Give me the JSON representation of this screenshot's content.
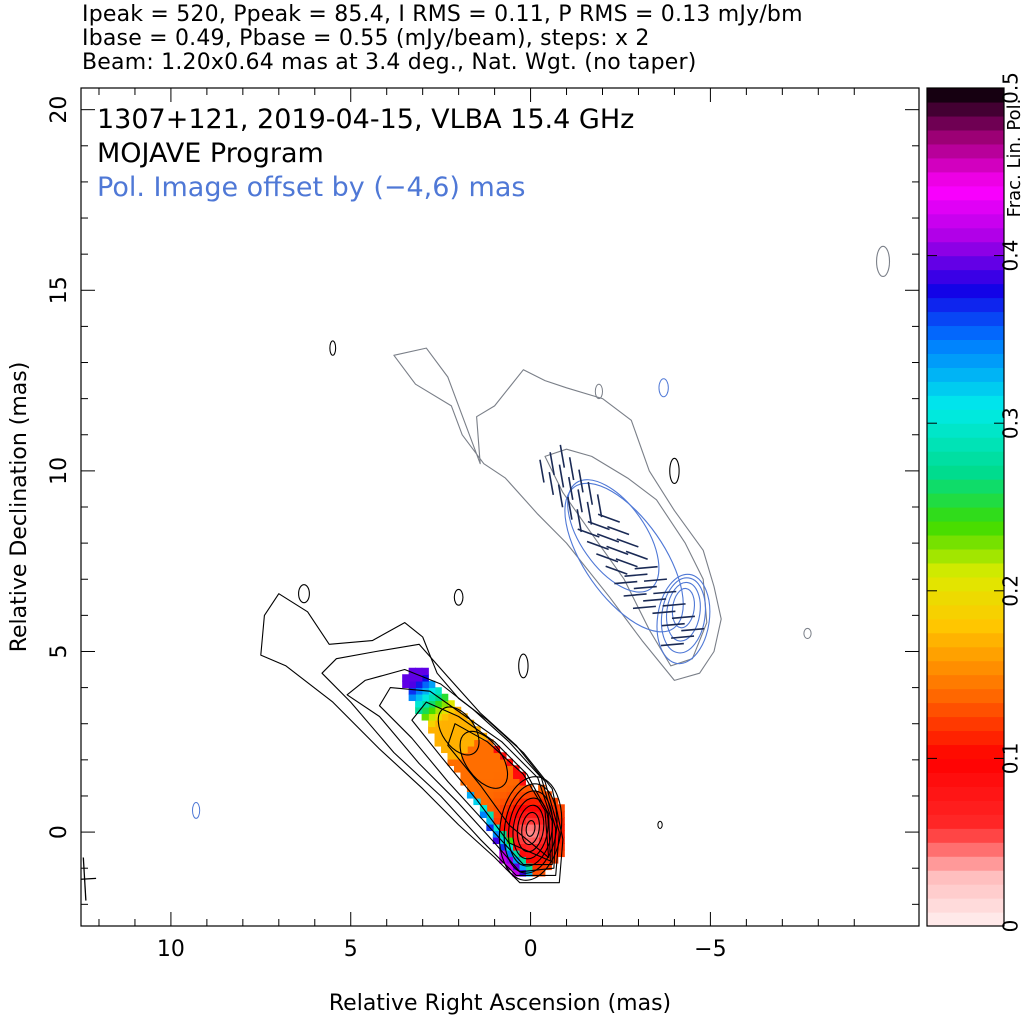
{
  "header": {
    "line1": "Ipeak = 520, Ppeak = 85.4, I RMS = 0.11, P RMS = 0.13 mJy/bm",
    "line2": "Ibase = 0.49, Pbase = 0.55 (mJy/beam), steps: x 2",
    "line3": "Beam: 1.20x0.64 mas at 3.4 deg., Nat. Wgt. (no taper)"
  },
  "annotations": {
    "source": "1307+121, 2019-04-15, VLBA 15.4 GHz",
    "program": "MOJAVE Program",
    "pol_offset": "Pol. Image offset by (−4,6) mas",
    "pol_offset_color": "#4f78d6"
  },
  "chart_data": {
    "type": "contour",
    "xlabel": "Relative Right Ascension (mas)",
    "ylabel": "Relative Declination (mas)",
    "xlim": [
      12.5,
      -10.8
    ],
    "ylim": [
      -2.6,
      20.6
    ],
    "xticks": [
      10,
      5,
      0,
      -5
    ],
    "xtick_labels": [
      "10",
      "5",
      "0",
      "−5"
    ],
    "yticks": [
      0,
      5,
      10,
      15,
      20
    ],
    "ytick_labels": [
      "0",
      "5",
      "10",
      "15",
      "20"
    ],
    "colorbar": {
      "label": "Frac. Lin. Pol.",
      "range": [
        0,
        0.5
      ],
      "ticks": [
        0,
        0.1,
        0.2,
        0.3,
        0.4,
        0.5
      ],
      "tick_labels": [
        "0",
        "0.1",
        "0.2",
        "0.3",
        "0.4",
        "0.5"
      ]
    },
    "total_intensity": {
      "peak_mJy_per_beam": 520,
      "rms_mJy_per_beam": 0.11,
      "base_contour_mJy_per_beam": 0.49,
      "contour_step_factor": 2,
      "core_position_mas": [
        0,
        0
      ],
      "jet_direction": "north-east",
      "jet_extent_mas": [
        [
          0,
          0
        ],
        [
          7.3,
          6.5
        ]
      ]
    },
    "polarization": {
      "peak_mJy_per_beam": 85.4,
      "rms_mJy_per_beam": 0.13,
      "base_contour_mJy_per_beam": 0.55,
      "image_offset_mas": [
        -4,
        6
      ],
      "fractional_pol_min": 0.0,
      "fractional_pol_max": 0.5
    },
    "beam": {
      "major_mas": 1.2,
      "minor_mas": 0.64,
      "pa_deg": 3.4,
      "weighting": "Nat. Wgt. (no taper)",
      "position_mas": [
        12.4,
        -1.3
      ]
    }
  }
}
